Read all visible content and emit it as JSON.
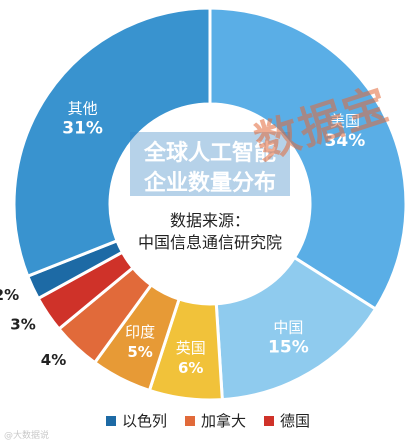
{
  "chart_data": {
    "type": "pie",
    "title": "全球人工智能企业数量分布",
    "source_label": "数据来源：",
    "source": "中国信息通信研究院",
    "slices": [
      {
        "label": "美国",
        "value": 34,
        "value_label": "34%",
        "color": "#5aaee6"
      },
      {
        "label": "中国",
        "value": 15,
        "value_label": "15%",
        "color": "#8fcbee"
      },
      {
        "label": "英国",
        "value": 6,
        "value_label": "6%",
        "color": "#f1c23a"
      },
      {
        "label": "印度",
        "value": 5,
        "value_label": "5%",
        "color": "#e79a36"
      },
      {
        "label": "",
        "value": 4,
        "value_label": "4%",
        "color": "#e16a3a"
      },
      {
        "label": "",
        "value": 3,
        "value_label": "3%",
        "color": "#cf3229"
      },
      {
        "label": "",
        "value": 2,
        "value_label": "2%",
        "color": "#1d6aa5"
      },
      {
        "label": "其他",
        "value": 31,
        "value_label": "31%",
        "color": "#3993cf"
      }
    ],
    "legend_position": "bottom"
  },
  "legend": [
    {
      "label": "以色列",
      "color": "#1d6aa5"
    },
    {
      "label": "加拿大",
      "color": "#e16a3a"
    },
    {
      "label": "德国",
      "color": "#cf3229"
    }
  ],
  "watermark": "数据宝",
  "corner_text": "@大数据说"
}
